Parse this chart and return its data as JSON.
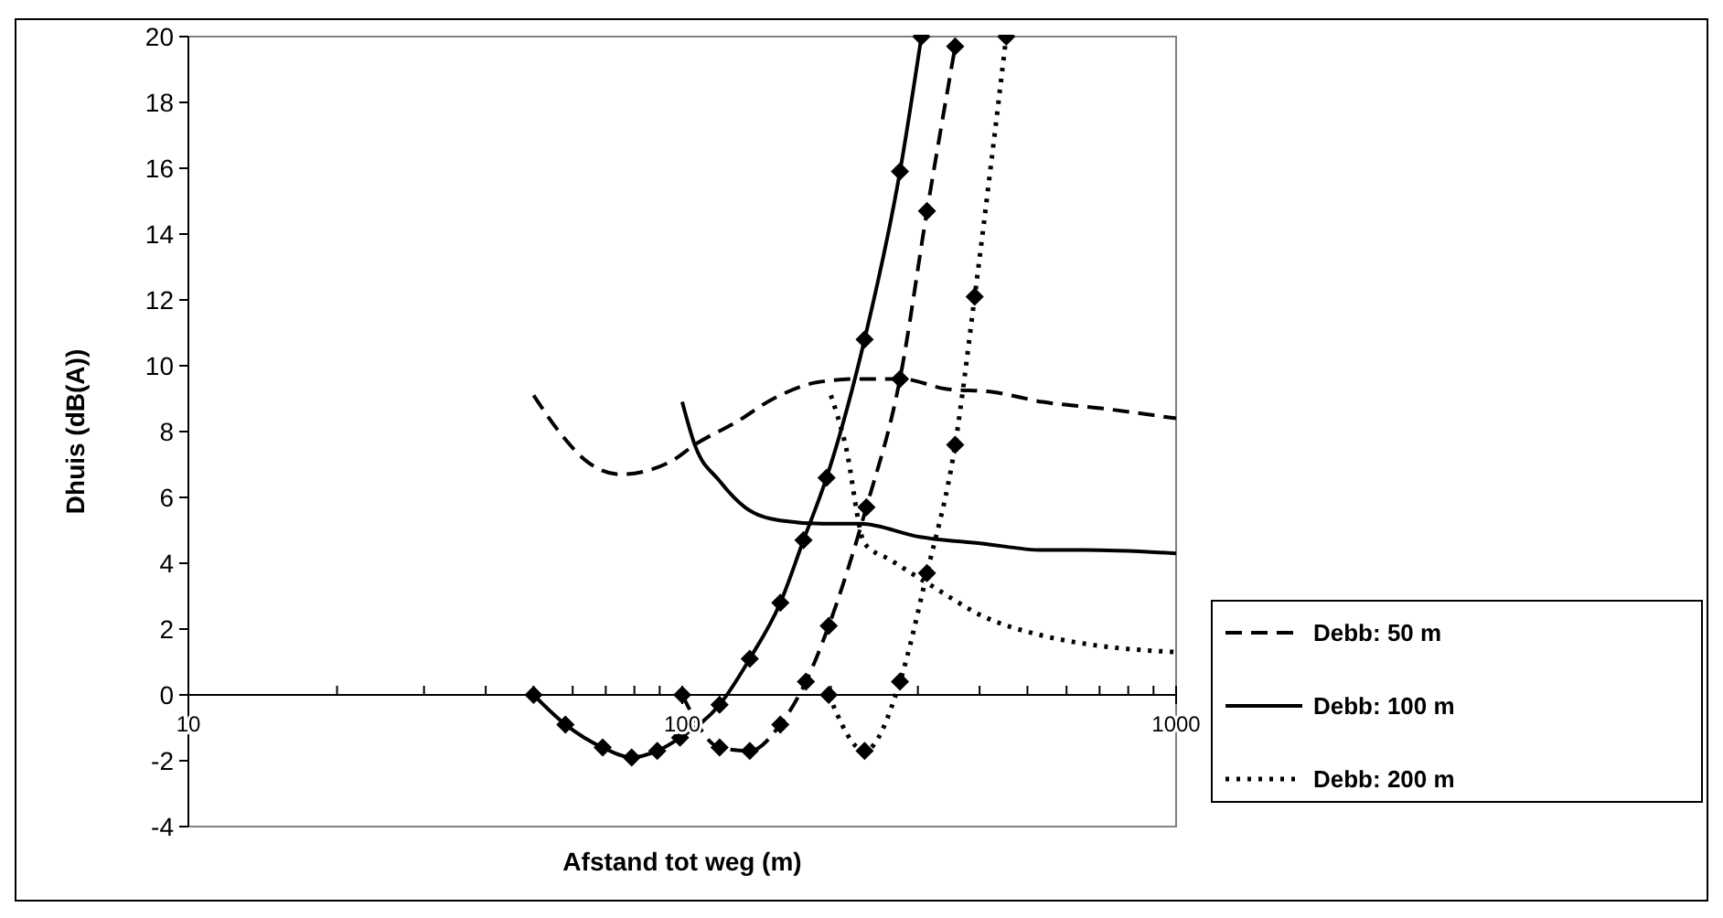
{
  "chart_data": {
    "type": "line",
    "xlabel": "Afstand tot weg (m)",
    "ylabel": "Dhuis (dB(A))",
    "log": "x",
    "xlim": [
      10,
      1000
    ],
    "xticks": [
      10,
      {
        "value": 20,
        "label": null
      },
      {
        "value": 30,
        "label": null
      },
      {
        "value": 40,
        "label": null
      },
      {
        "value": 50,
        "label": null
      },
      {
        "value": 60,
        "label": null
      },
      {
        "value": 70,
        "label": null
      },
      {
        "value": 80,
        "label": null
      },
      {
        "value": 90,
        "label": null
      },
      100,
      {
        "value": 200,
        "label": null
      },
      {
        "value": 300,
        "label": null
      },
      {
        "value": 400,
        "label": null
      },
      {
        "value": 500,
        "label": null
      },
      {
        "value": 600,
        "label": null
      },
      {
        "value": 700,
        "label": null
      },
      {
        "value": 800,
        "label": null
      },
      {
        "value": 900,
        "label": null
      },
      1000
    ],
    "ylim": [
      -4,
      20
    ],
    "yticks": [
      -4,
      -2,
      0,
      2,
      4,
      6,
      8,
      10,
      12,
      14,
      16,
      18,
      20
    ],
    "grid": false,
    "legend": "right",
    "series": [
      {
        "name": "Debb: 50 m",
        "color": "#000000",
        "line_style": "dashed",
        "marker": "none",
        "x": [
          50,
          57,
          64,
          75,
          95,
          106,
          129,
          153,
          188,
          229,
          278,
          341,
          426,
          537,
          711,
          1000
        ],
        "values": [
          9.1,
          7.9,
          7.1,
          6.7,
          7.1,
          7.6,
          8.3,
          9.0,
          9.5,
          9.6,
          9.6,
          9.3,
          9.2,
          8.9,
          8.7,
          8.4
        ]
      },
      {
        "name": "Debb: 100 m",
        "color": "#000000",
        "line_style": "solid",
        "marker": "none",
        "x": [
          100,
          106,
          119,
          134,
          158,
          193,
          229,
          303,
          405,
          537,
          653,
          1000
        ],
        "values": [
          8.9,
          7.6,
          6.5,
          5.7,
          5.3,
          5.2,
          5.2,
          4.8,
          4.6,
          4.4,
          4.4,
          4.3
        ]
      },
      {
        "name": "Debb: 200 m",
        "color": "#000000",
        "line_style": "dotted",
        "marker": "none",
        "x": [
          200,
          214,
          234,
          264,
          321,
          405,
          537,
          693,
          1000
        ],
        "values": [
          9.1,
          7.6,
          4.6,
          4.1,
          3.3,
          2.4,
          1.8,
          1.5,
          1.3
        ]
      },
      {
        "color": "#000000",
        "line_style": "dashed",
        "marker": "diamond",
        "x": [
          100,
          119,
          137,
          158,
          178,
          198,
          236,
          276,
          313,
          357
        ],
        "values": [
          0,
          -1.6,
          -1.7,
          -0.9,
          0.4,
          2.1,
          5.7,
          9.6,
          14.7,
          19.7
        ]
      },
      {
        "color": "#000000",
        "line_style": "solid",
        "marker": "diamond",
        "x": [
          50,
          58,
          69,
          79,
          89,
          99,
          119,
          137,
          158,
          176,
          196,
          234,
          276,
          305
        ],
        "values": [
          0,
          -0.9,
          -1.6,
          -1.9,
          -1.7,
          -1.3,
          -0.3,
          1.1,
          2.8,
          4.7,
          6.6,
          10.8,
          15.9,
          20
        ]
      },
      {
        "color": "#000000",
        "line_style": "dotted",
        "marker": "diamond",
        "x": [
          198,
          234,
          276,
          313,
          357,
          391,
          453
        ],
        "values": [
          0,
          -1.7,
          0.4,
          3.7,
          7.6,
          12.1,
          20
        ]
      }
    ]
  }
}
